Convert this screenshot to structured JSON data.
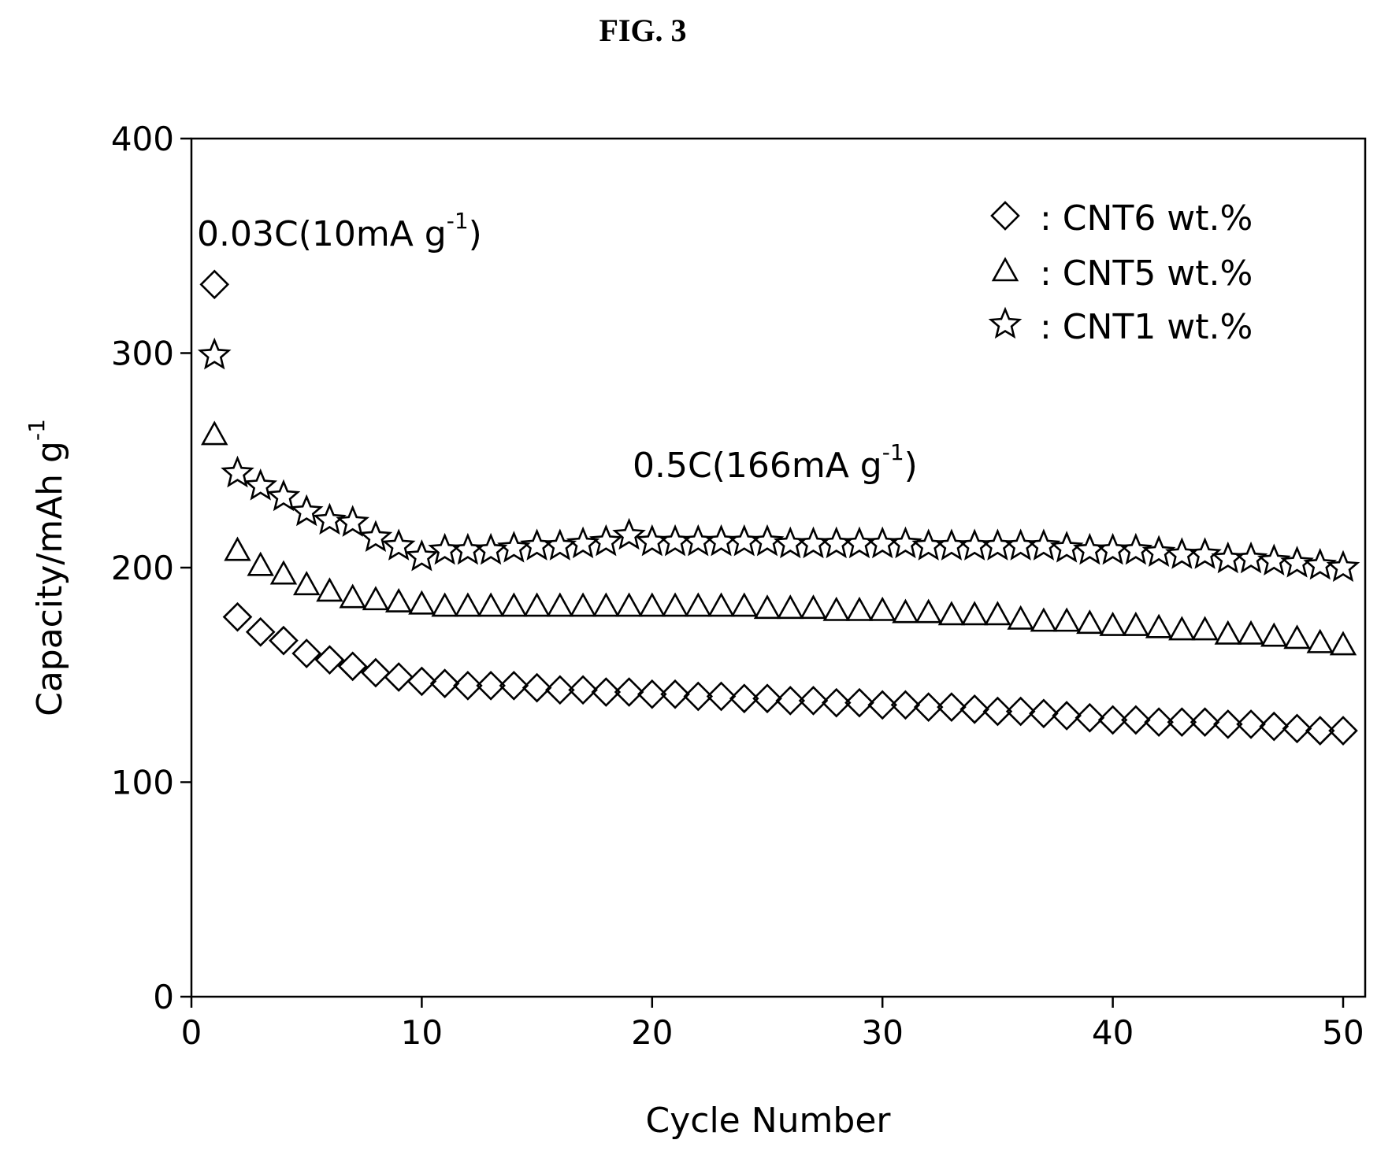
{
  "figure_label": "FIG. 3",
  "chart_data": {
    "type": "scatter",
    "xlabel": "Cycle Number",
    "ylabel": "Capacity/mAh g",
    "ylabel_sup": "-1",
    "xlim": [
      0,
      51
    ],
    "ylim": [
      0,
      400
    ],
    "xticks": [
      0,
      10,
      20,
      30,
      40,
      50
    ],
    "yticks": [
      0,
      100,
      200,
      300,
      400
    ],
    "grid": false,
    "legend_position": "top-right",
    "annotations": [
      {
        "text": "0.03C(10mA g",
        "sup": "-1",
        "close": ")"
      },
      {
        "text": "0.5C(166mA g",
        "sup": "-1",
        "close": ")"
      }
    ],
    "series": [
      {
        "name": ": CNT6 wt.%",
        "marker": "diamond",
        "x": [
          1,
          2,
          3,
          4,
          5,
          6,
          7,
          8,
          9,
          10,
          11,
          12,
          13,
          14,
          15,
          16,
          17,
          18,
          19,
          20,
          21,
          22,
          23,
          24,
          25,
          26,
          27,
          28,
          29,
          30,
          31,
          32,
          33,
          34,
          35,
          36,
          37,
          38,
          39,
          40,
          41,
          42,
          43,
          44,
          45,
          46,
          47,
          48,
          49,
          50
        ],
        "y": [
          332,
          177,
          170,
          166,
          160,
          157,
          154,
          151,
          149,
          147,
          146,
          145,
          145,
          145,
          144,
          143,
          143,
          142,
          142,
          141,
          141,
          140,
          140,
          139,
          139,
          138,
          138,
          137,
          137,
          136,
          136,
          135,
          135,
          134,
          133,
          133,
          132,
          131,
          130,
          129,
          129,
          128,
          128,
          128,
          127,
          127,
          126,
          125,
          124,
          124
        ]
      },
      {
        "name": ": CNT5 wt.%",
        "marker": "triangle",
        "x": [
          1,
          2,
          3,
          4,
          5,
          6,
          7,
          8,
          9,
          10,
          11,
          12,
          13,
          14,
          15,
          16,
          17,
          18,
          19,
          20,
          21,
          22,
          23,
          24,
          25,
          26,
          27,
          28,
          29,
          30,
          31,
          32,
          33,
          34,
          35,
          36,
          37,
          38,
          39,
          40,
          41,
          42,
          43,
          44,
          45,
          46,
          47,
          48,
          49,
          50
        ],
        "y": [
          262,
          208,
          201,
          197,
          192,
          189,
          186,
          185,
          184,
          183,
          182,
          182,
          182,
          182,
          182,
          182,
          182,
          182,
          182,
          182,
          182,
          182,
          182,
          182,
          181,
          181,
          181,
          180,
          180,
          180,
          179,
          179,
          178,
          178,
          178,
          176,
          175,
          175,
          174,
          173,
          173,
          172,
          171,
          171,
          169,
          169,
          168,
          167,
          165,
          164
        ]
      },
      {
        "name": ": CNT1 wt.%",
        "marker": "star",
        "x": [
          1,
          2,
          3,
          4,
          5,
          6,
          7,
          8,
          9,
          10,
          11,
          12,
          13,
          14,
          15,
          16,
          17,
          18,
          19,
          20,
          21,
          22,
          23,
          24,
          25,
          26,
          27,
          28,
          29,
          30,
          31,
          32,
          33,
          34,
          35,
          36,
          37,
          38,
          39,
          40,
          41,
          42,
          43,
          44,
          45,
          46,
          47,
          48,
          49,
          50
        ],
        "y": [
          299,
          244,
          238,
          233,
          226,
          222,
          221,
          214,
          210,
          205,
          208,
          208,
          208,
          209,
          210,
          210,
          211,
          212,
          215,
          212,
          212,
          212,
          212,
          212,
          212,
          211,
          211,
          211,
          211,
          211,
          211,
          210,
          210,
          210,
          210,
          210,
          210,
          209,
          208,
          208,
          208,
          207,
          206,
          206,
          204,
          204,
          203,
          202,
          201,
          200
        ]
      }
    ]
  }
}
